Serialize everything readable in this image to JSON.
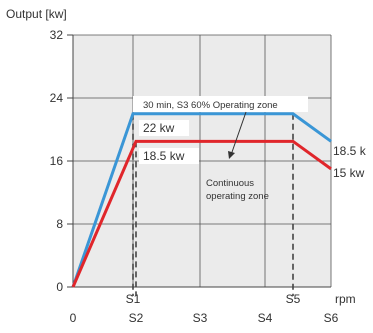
{
  "chart_data": {
    "type": "line",
    "title": "",
    "xlabel": "rpm",
    "ylabel": "Output [kw]",
    "ylim": [
      0,
      32
    ],
    "yticks": [
      0,
      8,
      16,
      24,
      32
    ],
    "x_ticks_bottom": [
      "0",
      "S2",
      "S3",
      "S4",
      "S6"
    ],
    "x_ticks_top": [
      "S1",
      "S5"
    ],
    "x_positions": {
      "0": 0,
      "S1": 1,
      "S2": 1.05,
      "S3": 2,
      "S4": 3,
      "S5": 3.95,
      "S6": 4
    },
    "grid": true,
    "series": [
      {
        "name": "30 min, S3 60% Operating zone",
        "color": "#3a96d6",
        "points": [
          {
            "x": "0",
            "y": 0
          },
          {
            "x": "S1",
            "y": 22
          },
          {
            "x": "S5",
            "y": 22
          },
          {
            "x": "S6",
            "y": 18.5
          }
        ]
      },
      {
        "name": "Continuous operating zone",
        "color": "#e0262b",
        "points": [
          {
            "x": "0",
            "y": 0
          },
          {
            "x": "S2",
            "y": 18.5
          },
          {
            "x": "S5",
            "y": 18.5
          },
          {
            "x": "S6",
            "y": 15
          }
        ]
      }
    ],
    "annotations": {
      "zone_s3": "30 min, S3 60% Operating zone",
      "blue_level": "22 kw",
      "red_level": "18.5 kw",
      "continuous_line1": "Continuous",
      "continuous_line2": "operating zone",
      "blue_end": "18.5 k",
      "red_end": "15 kw"
    }
  }
}
